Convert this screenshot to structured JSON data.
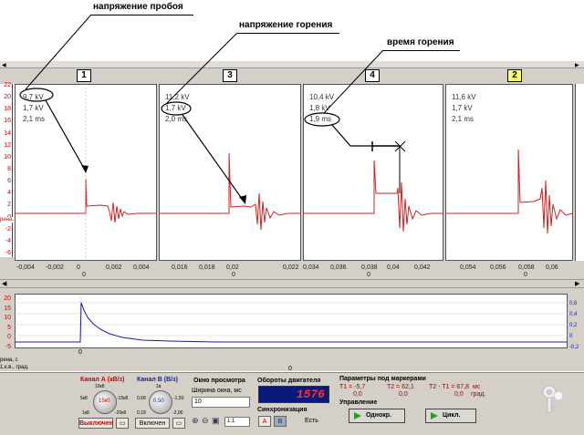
{
  "annotations": {
    "breakdown_voltage": "напряжение пробоя",
    "burn_voltage": "напряжение горения",
    "burn_time": "время горения"
  },
  "channels": [
    {
      "tab": "1",
      "kv1": "9,7 kV",
      "kv2": "1,7 kV",
      "ms": "2,1 ms",
      "x_ticks": [
        "-0,004",
        "-0,002",
        "0",
        "0,002",
        "0,004"
      ],
      "x_zero": "0"
    },
    {
      "tab": "3",
      "kv1": "11,2 kV",
      "kv2": "1,7 kV",
      "ms": "2,0 ms",
      "x_ticks": [
        "0,016",
        "0,018",
        "0,02",
        "0,022"
      ],
      "x_zero": "0"
    },
    {
      "tab": "4",
      "kv1": "10,4 kV",
      "kv2": "1,8 kV",
      "ms": "1,9 ms",
      "x_ticks": [
        "0,034",
        "0,036",
        "0,038",
        "0,04",
        "0,042"
      ],
      "x_zero": "0"
    },
    {
      "tab": "2",
      "kv1": "11,6 kV",
      "kv2": "1,7 kV",
      "ms": "2,1 ms",
      "x_ticks": [
        "0,054",
        "0,056",
        "0,058",
        "0,06"
      ],
      "x_zero": "0"
    }
  ],
  "top_y_ticks": [
    "22",
    "20",
    "18",
    "16",
    "14",
    "12",
    "10",
    "8",
    "6",
    "4",
    "2",
    "0",
    "-2",
    "-4",
    "-6"
  ],
  "top_y_fragment": "рена, с",
  "bottom_left_ticks": [
    "20",
    "15",
    "10",
    "5",
    "0",
    "-5"
  ],
  "bottom_right_ticks": [
    "0,6",
    "0,4",
    "0,2",
    "0",
    "-0,2"
  ],
  "bottom_x_zero": "0",
  "bottom_labels": {
    "time": "рена, с",
    "angle": "1.к.в., град."
  },
  "top_scroll_zero": "0",
  "controls": {
    "channel_a": {
      "title": "Канал А (кВ/з)",
      "scale": "15к0",
      "marks": [
        "10к8",
        "5к8",
        "1к8",
        "-15к8",
        "-20к8"
      ],
      "state": "Выключен"
    },
    "channel_b": {
      "title": "Канал В (В/з)",
      "scale": "0,50",
      "marks": [
        "1в",
        "0,68",
        "0,18",
        "-1,50",
        "-2,00"
      ],
      "state": "Включен"
    },
    "window": {
      "title": "Окно просмотра",
      "width_label": "Ширина окна, мс",
      "width_value": "10",
      "zoom": "1:1"
    },
    "rpm": {
      "title": "Обороты двигателя",
      "value": "1576"
    },
    "sync": {
      "title": "Синхронизация",
      "a": "А",
      "b": "В",
      "status": "Есть"
    },
    "markers": {
      "title": "Параметры под маркерами",
      "t1": "T1 = -5,7",
      "t1_val": "0,0",
      "t2": "T2 = 62,1",
      "t2_val": "0,0",
      "diff": "T2 - T1 = 67,8",
      "diff_val": "0,0",
      "unit_ms": "мс",
      "unit_deg": "град."
    },
    "control": {
      "title": "Управление",
      "single": "Однокр.",
      "cycle": "Цикл."
    }
  },
  "colors": {
    "trace_red": "#cc2222",
    "trace_blue": "#1a1aaa",
    "rpm_bg": "#0a1a7a",
    "rpm_text": "#ff3030",
    "tab_active": "#ffff66"
  }
}
